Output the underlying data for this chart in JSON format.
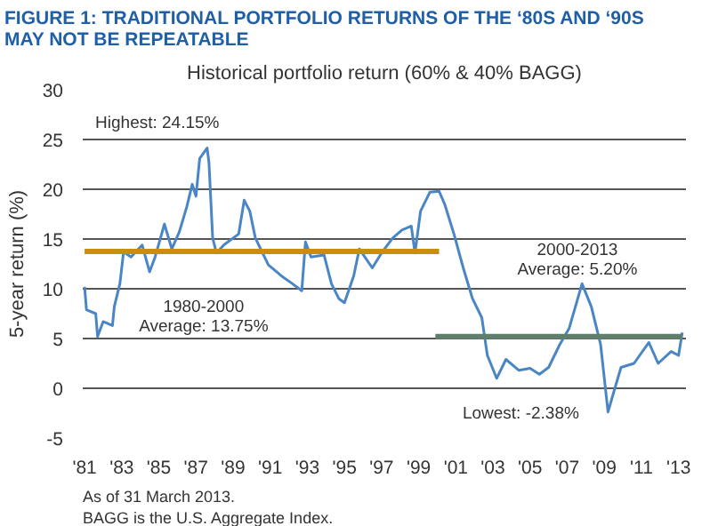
{
  "chart_data": {
    "type": "line",
    "title": "FIGURE 1: TRADITIONAL PORTFOLIO RETURNS OF THE ‘80S AND ‘90S\nMAY NOT BE REPEATABLE",
    "subtitle": "Historical portfolio return (60% & 40% BAGG)",
    "ylabel": "5-year return (%)",
    "series": [
      {
        "color": "#4a86c5",
        "x": [
          1981.0,
          1981.1,
          1981.6,
          1981.7,
          1982.0,
          1982.5,
          1982.6,
          1982.9,
          1983.1,
          1983.5,
          1984.1,
          1984.5,
          1984.8,
          1985.3,
          1985.7,
          1986.1,
          1986.5,
          1986.8,
          1987.0,
          1987.2,
          1987.6,
          1987.7,
          1987.9,
          1988.1,
          1988.5,
          1989.3,
          1989.6,
          1989.9,
          1990.2,
          1990.9,
          1991.6,
          1992.2,
          1992.7,
          1992.9,
          1993.2,
          1993.9,
          1994.3,
          1994.7,
          1995.0,
          1995.5,
          1995.8,
          1996.5,
          1997.0,
          1997.6,
          1998.1,
          1998.6,
          1998.8,
          1999.1,
          1999.6,
          2000.1,
          2000.4,
          2000.9,
          2001.4,
          2001.9,
          2002.4,
          2002.7,
          2003.2,
          2003.7,
          2004.4,
          2005.0,
          2005.5,
          2006.0,
          2006.6,
          2007.1,
          2007.8,
          2008.3,
          2008.8,
          2009.2,
          2009.6,
          2009.9,
          2010.6,
          2011.4,
          2011.9,
          2012.6,
          2013.0,
          2013.2
        ],
        "values": [
          10.2,
          7.9,
          7.5,
          5.2,
          6.7,
          6.3,
          8.2,
          10.5,
          13.7,
          13.2,
          14.4,
          11.7,
          13.2,
          16.5,
          14.0,
          15.7,
          18.2,
          20.5,
          19.3,
          23.1,
          24.15,
          22.7,
          15.1,
          13.6,
          14.4,
          15.5,
          18.9,
          17.8,
          15.1,
          12.4,
          11.3,
          10.5,
          9.8,
          14.7,
          13.2,
          13.4,
          10.5,
          9.0,
          8.6,
          11.3,
          14.0,
          12.1,
          13.6,
          15.1,
          15.9,
          16.3,
          13.6,
          17.8,
          19.7,
          19.8,
          18.5,
          15.5,
          12.1,
          9.0,
          7.1,
          3.3,
          1.0,
          2.9,
          1.8,
          2.0,
          1.4,
          2.1,
          4.4,
          6.0,
          10.5,
          8.2,
          4.4,
          -2.38,
          0.2,
          2.1,
          2.5,
          4.6,
          2.5,
          3.7,
          3.3,
          5.6
        ]
      },
      {
        "color": "#c8900a",
        "x": [
          1981.0,
          2000.1
        ],
        "values": [
          13.75,
          13.75
        ]
      },
      {
        "color": "#5f7f6c",
        "x": [
          1999.9,
          2013.2
        ],
        "values": [
          5.2,
          5.2
        ]
      }
    ],
    "xlim": [
      1980.9,
      2013.4
    ],
    "xticks": [
      {
        "value": 1981,
        "label": "'81"
      },
      {
        "value": 1983,
        "label": "'83"
      },
      {
        "value": 1985,
        "label": "'85"
      },
      {
        "value": 1987,
        "label": "'87"
      },
      {
        "value": 1989,
        "label": "'89"
      },
      {
        "value": 1991,
        "label": "'91"
      },
      {
        "value": 1993,
        "label": "'93"
      },
      {
        "value": 1995,
        "label": "'95"
      },
      {
        "value": 1997,
        "label": "'97"
      },
      {
        "value": 1999,
        "label": "'99"
      },
      {
        "value": 2001,
        "label": "'01"
      },
      {
        "value": 2003,
        "label": "'03"
      },
      {
        "value": 2005,
        "label": "'05"
      },
      {
        "value": 2007,
        "label": "'07"
      },
      {
        "value": 2009,
        "label": "'09"
      },
      {
        "value": 2011,
        "label": "'11"
      },
      {
        "value": 2013,
        "label": "'13"
      }
    ],
    "ylim": [
      -5,
      30
    ],
    "yticks": [
      -5,
      0,
      5,
      10,
      15,
      20,
      25,
      30
    ],
    "grid": "y",
    "annotations": [
      {
        "text": "Highest: 24.15%",
        "x": 1987.6,
        "y": 24.15
      },
      {
        "text": "1980-2000\nAverage: 13.75%",
        "x": 1990.0,
        "y": 13.75
      },
      "2000-2013\nAverage: 5.20%",
      {
        "text": "Lowest: -2.38%",
        "x": 2009.2,
        "y": -2.38
      },
      "As of 31 March 2013.",
      "BAGG is the U.S. Aggregate Index."
    ]
  }
}
